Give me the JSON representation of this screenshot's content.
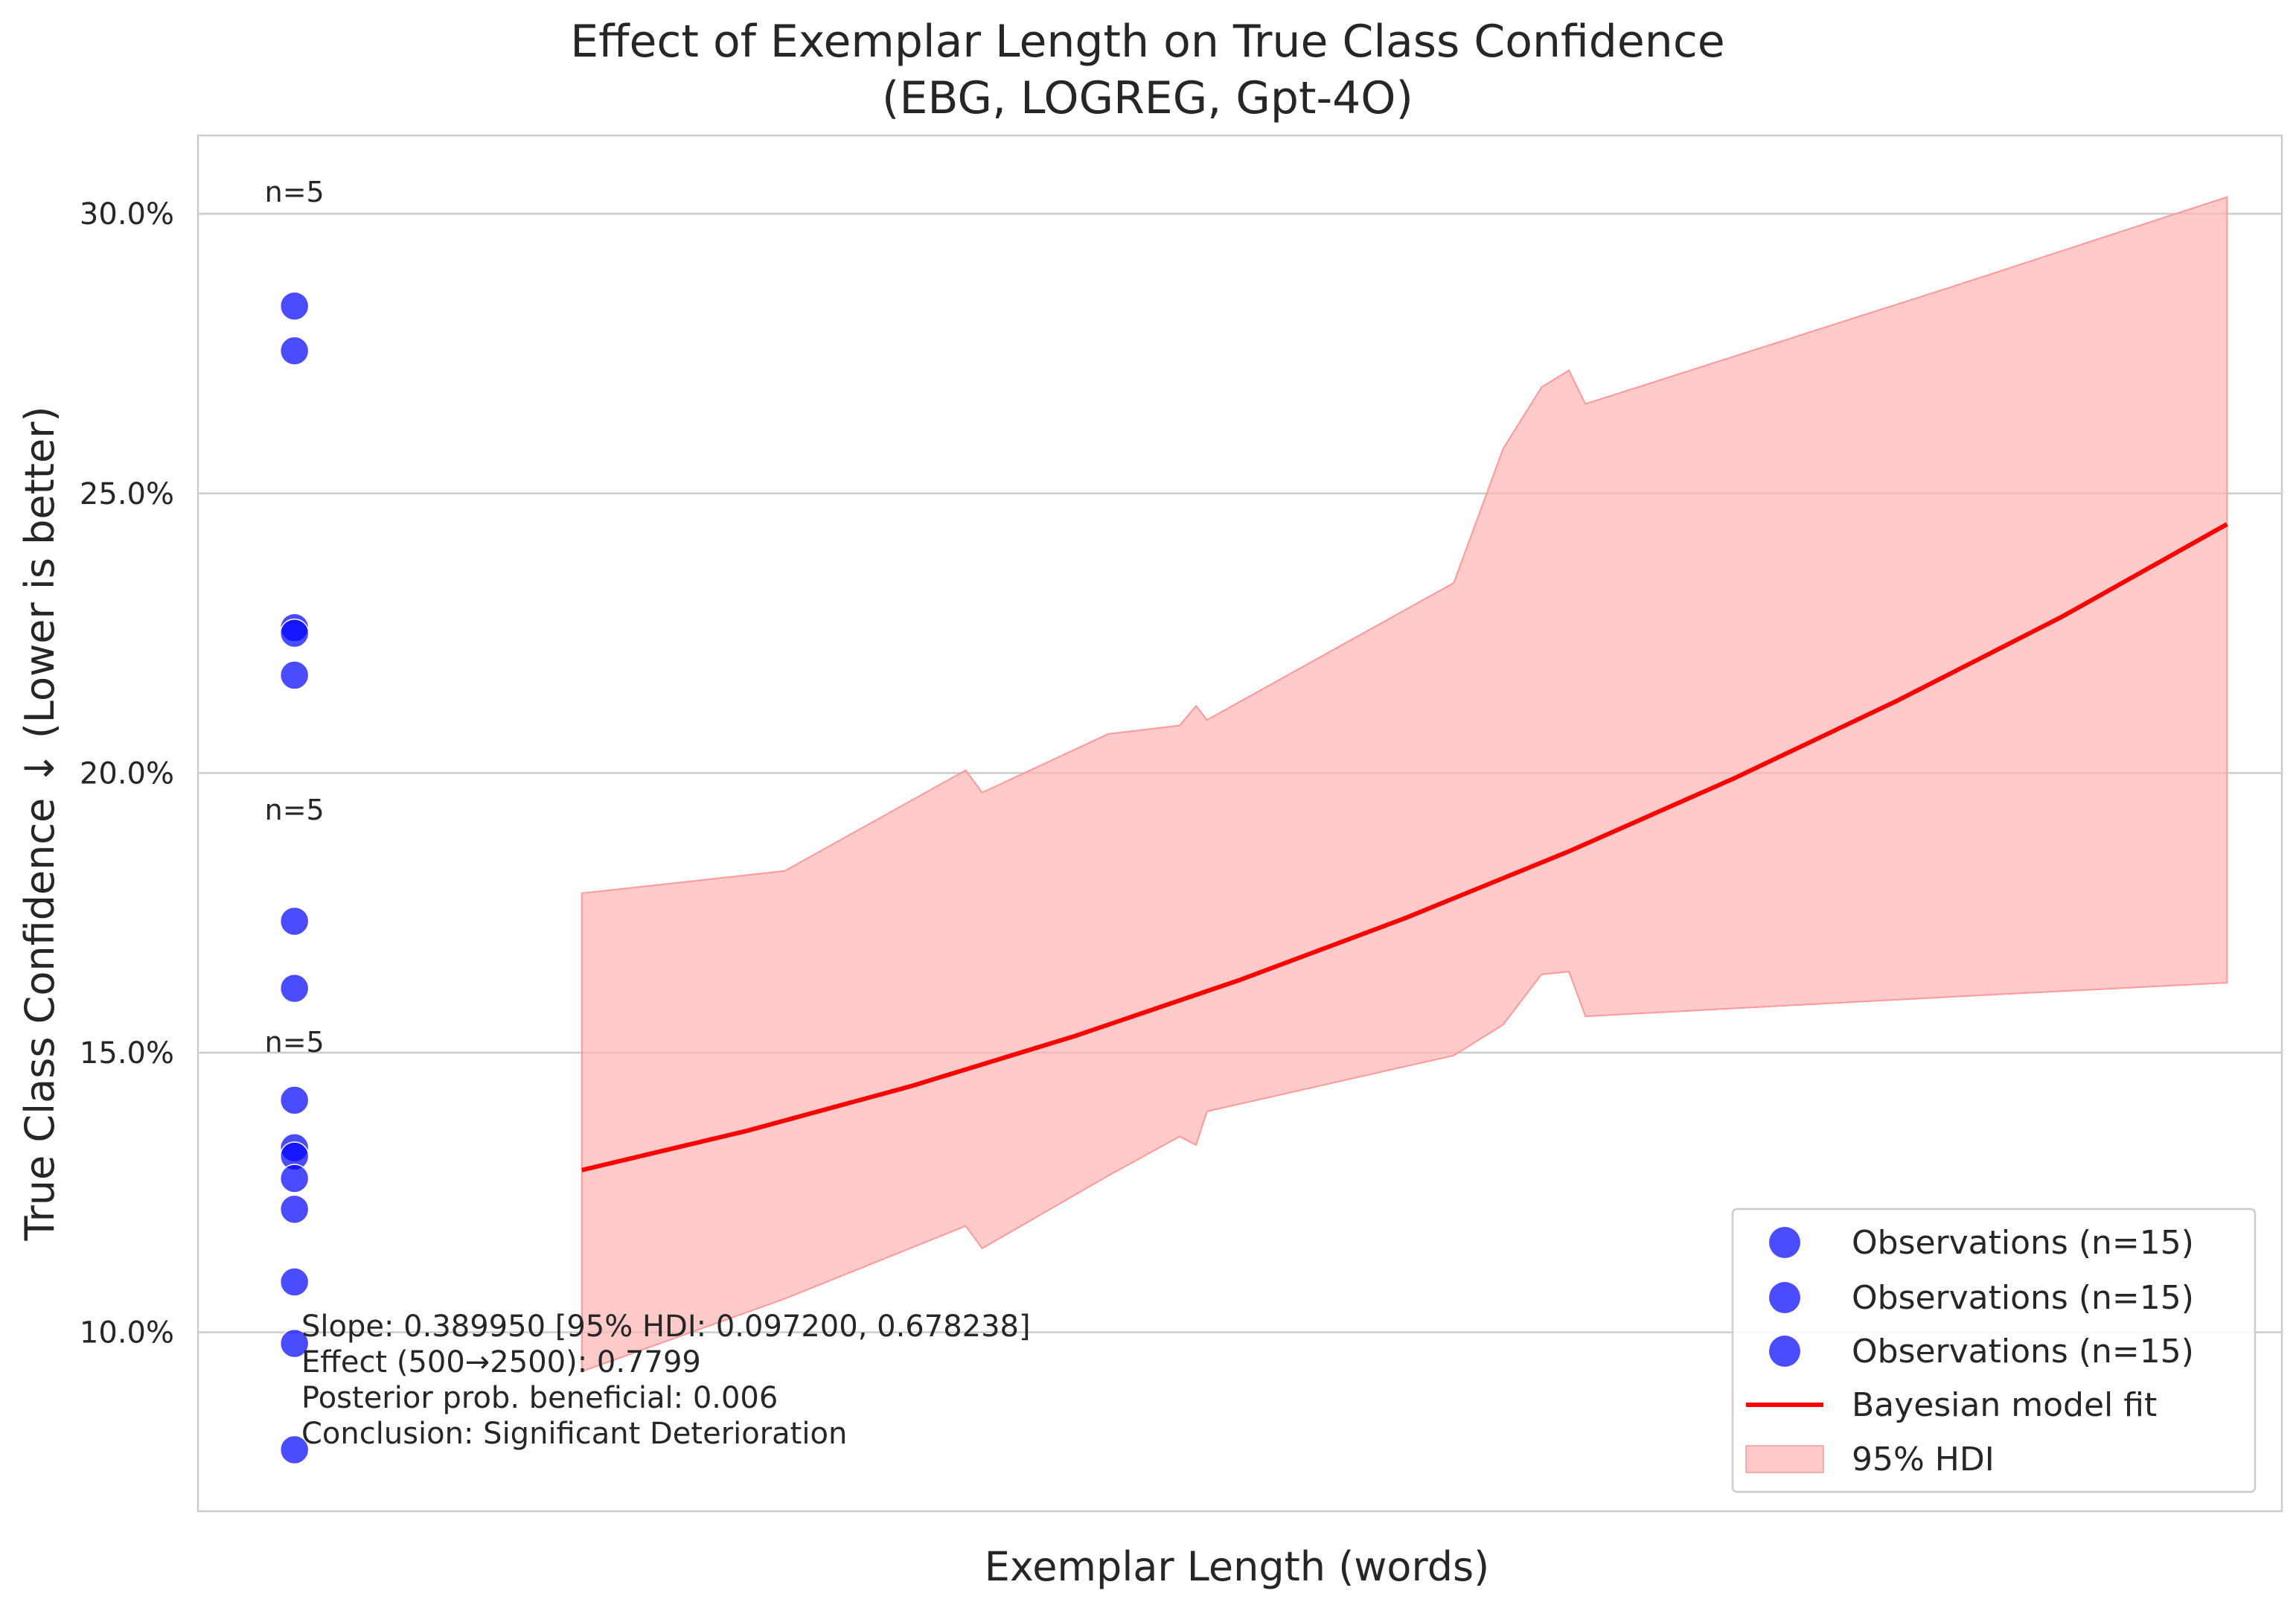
{
  "chart_data": {
    "type": "scatter",
    "title": "Effect of Exemplar Length on True Class Confidence",
    "subtitle": "(EBG, LOGREG, Gpt-4O)",
    "xlabel": "Exemplar Length (words)",
    "ylabel": "True Class Confidence ↓ (Lower is better)",
    "xlim": [
      400,
      2300
    ],
    "ylim": [
      6.8,
      31.4
    ],
    "x_tick_labels": [],
    "y_ticks": [
      10.0,
      15.0,
      20.0,
      25.0,
      30.0
    ],
    "y_tick_labels": [
      "10.0%",
      "15.0%",
      "20.0%",
      "25.0%",
      "30.0%"
    ],
    "grid": "horizontal",
    "legend_position": "lower right",
    "colors": {
      "observations": "#0000ff",
      "fit_line": "#ff0000",
      "hdi_fill": "#ffb3b3",
      "grid": "#cccccc",
      "axes_border": "#cccccc"
    },
    "series": [
      {
        "name": "Observations (n=15)",
        "type": "scatter",
        "points": [
          {
            "x": 488,
            "y": 28.35
          },
          {
            "x": 488,
            "y": 27.55
          },
          {
            "x": 488,
            "y": 22.6
          },
          {
            "x": 488,
            "y": 22.5
          },
          {
            "x": 488,
            "y": 21.75
          }
        ]
      },
      {
        "name": "Observations (n=15)",
        "type": "scatter",
        "points": [
          {
            "x": 488,
            "y": 17.35
          },
          {
            "x": 488,
            "y": 16.15
          },
          {
            "x": 488,
            "y": 14.15
          },
          {
            "x": 488,
            "y": 13.3
          },
          {
            "x": 488,
            "y": 13.15
          }
        ]
      },
      {
        "name": "Observations (n=15)",
        "type": "scatter",
        "points": [
          {
            "x": 488,
            "y": 12.75
          },
          {
            "x": 488,
            "y": 12.2
          },
          {
            "x": 488,
            "y": 10.9
          },
          {
            "x": 488,
            "y": 9.8
          },
          {
            "x": 488,
            "y": 7.9
          }
        ]
      },
      {
        "name": "Bayesian model fit",
        "type": "line",
        "x": [
          750,
          900,
          1050,
          1200,
          1350,
          1500,
          1650,
          1800,
          1950,
          2100,
          2250
        ],
        "y": [
          12.9,
          13.6,
          14.4,
          15.3,
          16.3,
          17.4,
          18.6,
          19.9,
          21.3,
          22.8,
          24.45
        ]
      },
      {
        "name": "95% HDI",
        "type": "area",
        "x": [
          750,
          935,
          1100,
          1115,
          1230,
          1295,
          1310,
          1320,
          1545,
          1590,
          1625,
          1650,
          1665,
          2000,
          2250
        ],
        "y_upper": [
          17.85,
          18.25,
          20.05,
          19.65,
          20.7,
          20.85,
          21.2,
          20.95,
          23.4,
          25.8,
          26.9,
          27.2,
          26.6,
          28.7,
          30.3
        ],
        "y_lower": [
          9.3,
          10.6,
          11.9,
          11.5,
          12.8,
          13.5,
          13.35,
          13.95,
          14.95,
          15.5,
          16.4,
          16.45,
          15.65,
          16.0,
          16.25
        ]
      }
    ],
    "annotations": {
      "counts": [
        {
          "text": "n=5",
          "x": 488,
          "y": 30.4
        },
        {
          "text": "n=5",
          "x": 488,
          "y": 19.35
        },
        {
          "text": "n=5",
          "x": 488,
          "y": 15.2
        }
      ],
      "stats_lines": [
        "Slope: 0.389950 [95% HDI: 0.097200, 0.678238]",
        "Effect (500→2500): 0.7799",
        "Posterior prob. beneficial: 0.006",
        "Conclusion: Significant Deterioration"
      ]
    },
    "legend": [
      {
        "label": "Observations (n=15)",
        "marker": "circle",
        "color": "#0000ff"
      },
      {
        "label": "Observations (n=15)",
        "marker": "circle",
        "color": "#0000ff"
      },
      {
        "label": "Observations (n=15)",
        "marker": "circle",
        "color": "#0000ff"
      },
      {
        "label": "Bayesian model fit",
        "marker": "line",
        "color": "#ff0000"
      },
      {
        "label": "95% HDI",
        "marker": "patch",
        "color": "#ffb3b3"
      }
    ]
  }
}
